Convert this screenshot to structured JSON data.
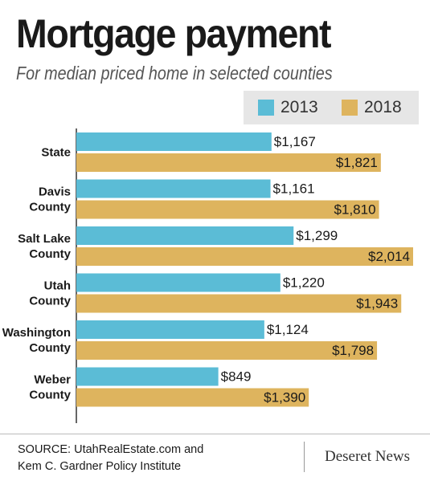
{
  "header": {
    "title": "Mortgage payment",
    "subtitle": "For median priced home in selected counties"
  },
  "legend": [
    {
      "label": "2013",
      "color": "#5bbcd6"
    },
    {
      "label": "2018",
      "color": "#deb45e"
    }
  ],
  "chart_data": {
    "type": "bar",
    "orientation": "horizontal",
    "title": "Mortgage payment",
    "subtitle": "For median priced home in selected counties",
    "categories": [
      [
        "State"
      ],
      [
        "Davis",
        "County"
      ],
      [
        "Salt Lake",
        "County"
      ],
      [
        "Utah",
        "County"
      ],
      [
        "Washington",
        "County"
      ],
      [
        "Weber",
        "County"
      ]
    ],
    "series": [
      {
        "name": "2013",
        "color": "#5bbcd6",
        "values": [
          1167,
          1161,
          1299,
          1220,
          1124,
          849
        ],
        "labels": [
          "$1,167",
          "$1,161",
          "$1,299",
          "$1,220",
          "$1,124",
          "$849"
        ]
      },
      {
        "name": "2018",
        "color": "#deb45e",
        "values": [
          1821,
          1810,
          2014,
          1943,
          1798,
          1390
        ],
        "labels": [
          "$1,821",
          "$1,810",
          "$2,014",
          "$1,943",
          "$1,798",
          "$1,390"
        ]
      }
    ],
    "xlim": [
      0,
      2014
    ],
    "grid": false,
    "legend_position": "top-right"
  },
  "footer": {
    "source_line1": "SOURCE: UtahRealEstate.com and",
    "source_line2": "Kem C. Gardner Policy Institute",
    "brand": "Deseret News"
  }
}
